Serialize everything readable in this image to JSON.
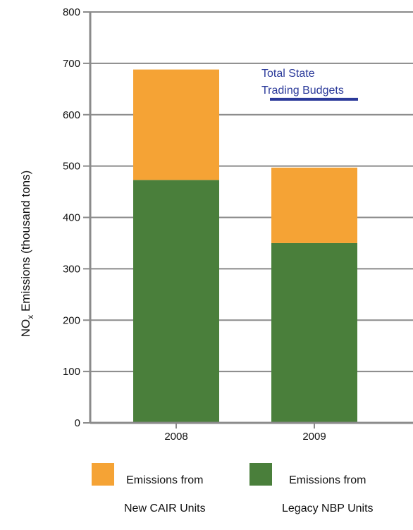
{
  "chart_data": {
    "type": "bar",
    "stacked": true,
    "categories": [
      "2008",
      "2009"
    ],
    "series": [
      {
        "name": "Emissions from Legacy NBP Units",
        "values": [
          473,
          350
        ],
        "color": "#4a7f3b"
      },
      {
        "name": "Emissions from New CAIR Units",
        "values": [
          215,
          147
        ],
        "color": "#f5a335"
      }
    ],
    "ylim": [
      0,
      800
    ],
    "yticks": [
      "0",
      "100",
      "200",
      "300",
      "400",
      "500",
      "600",
      "700",
      "800"
    ],
    "ylabel": {
      "main": "NO",
      "subscript": "x",
      "rest": "  Emissions (thousand tons)"
    },
    "grid": true,
    "annotation": {
      "line1": "Total State",
      "line2": "Trading Budgets",
      "budget_value": 630,
      "color": "#2b3a9a"
    },
    "legend_position": "bottom"
  },
  "legend": {
    "items": [
      {
        "label_line1": "Emissions from",
        "label_line2": "New CAIR Units",
        "color": "#f5a335"
      },
      {
        "label_line1": "Emissions from",
        "label_line2": "Legacy NBP Units",
        "color": "#4a7f3b"
      }
    ]
  }
}
